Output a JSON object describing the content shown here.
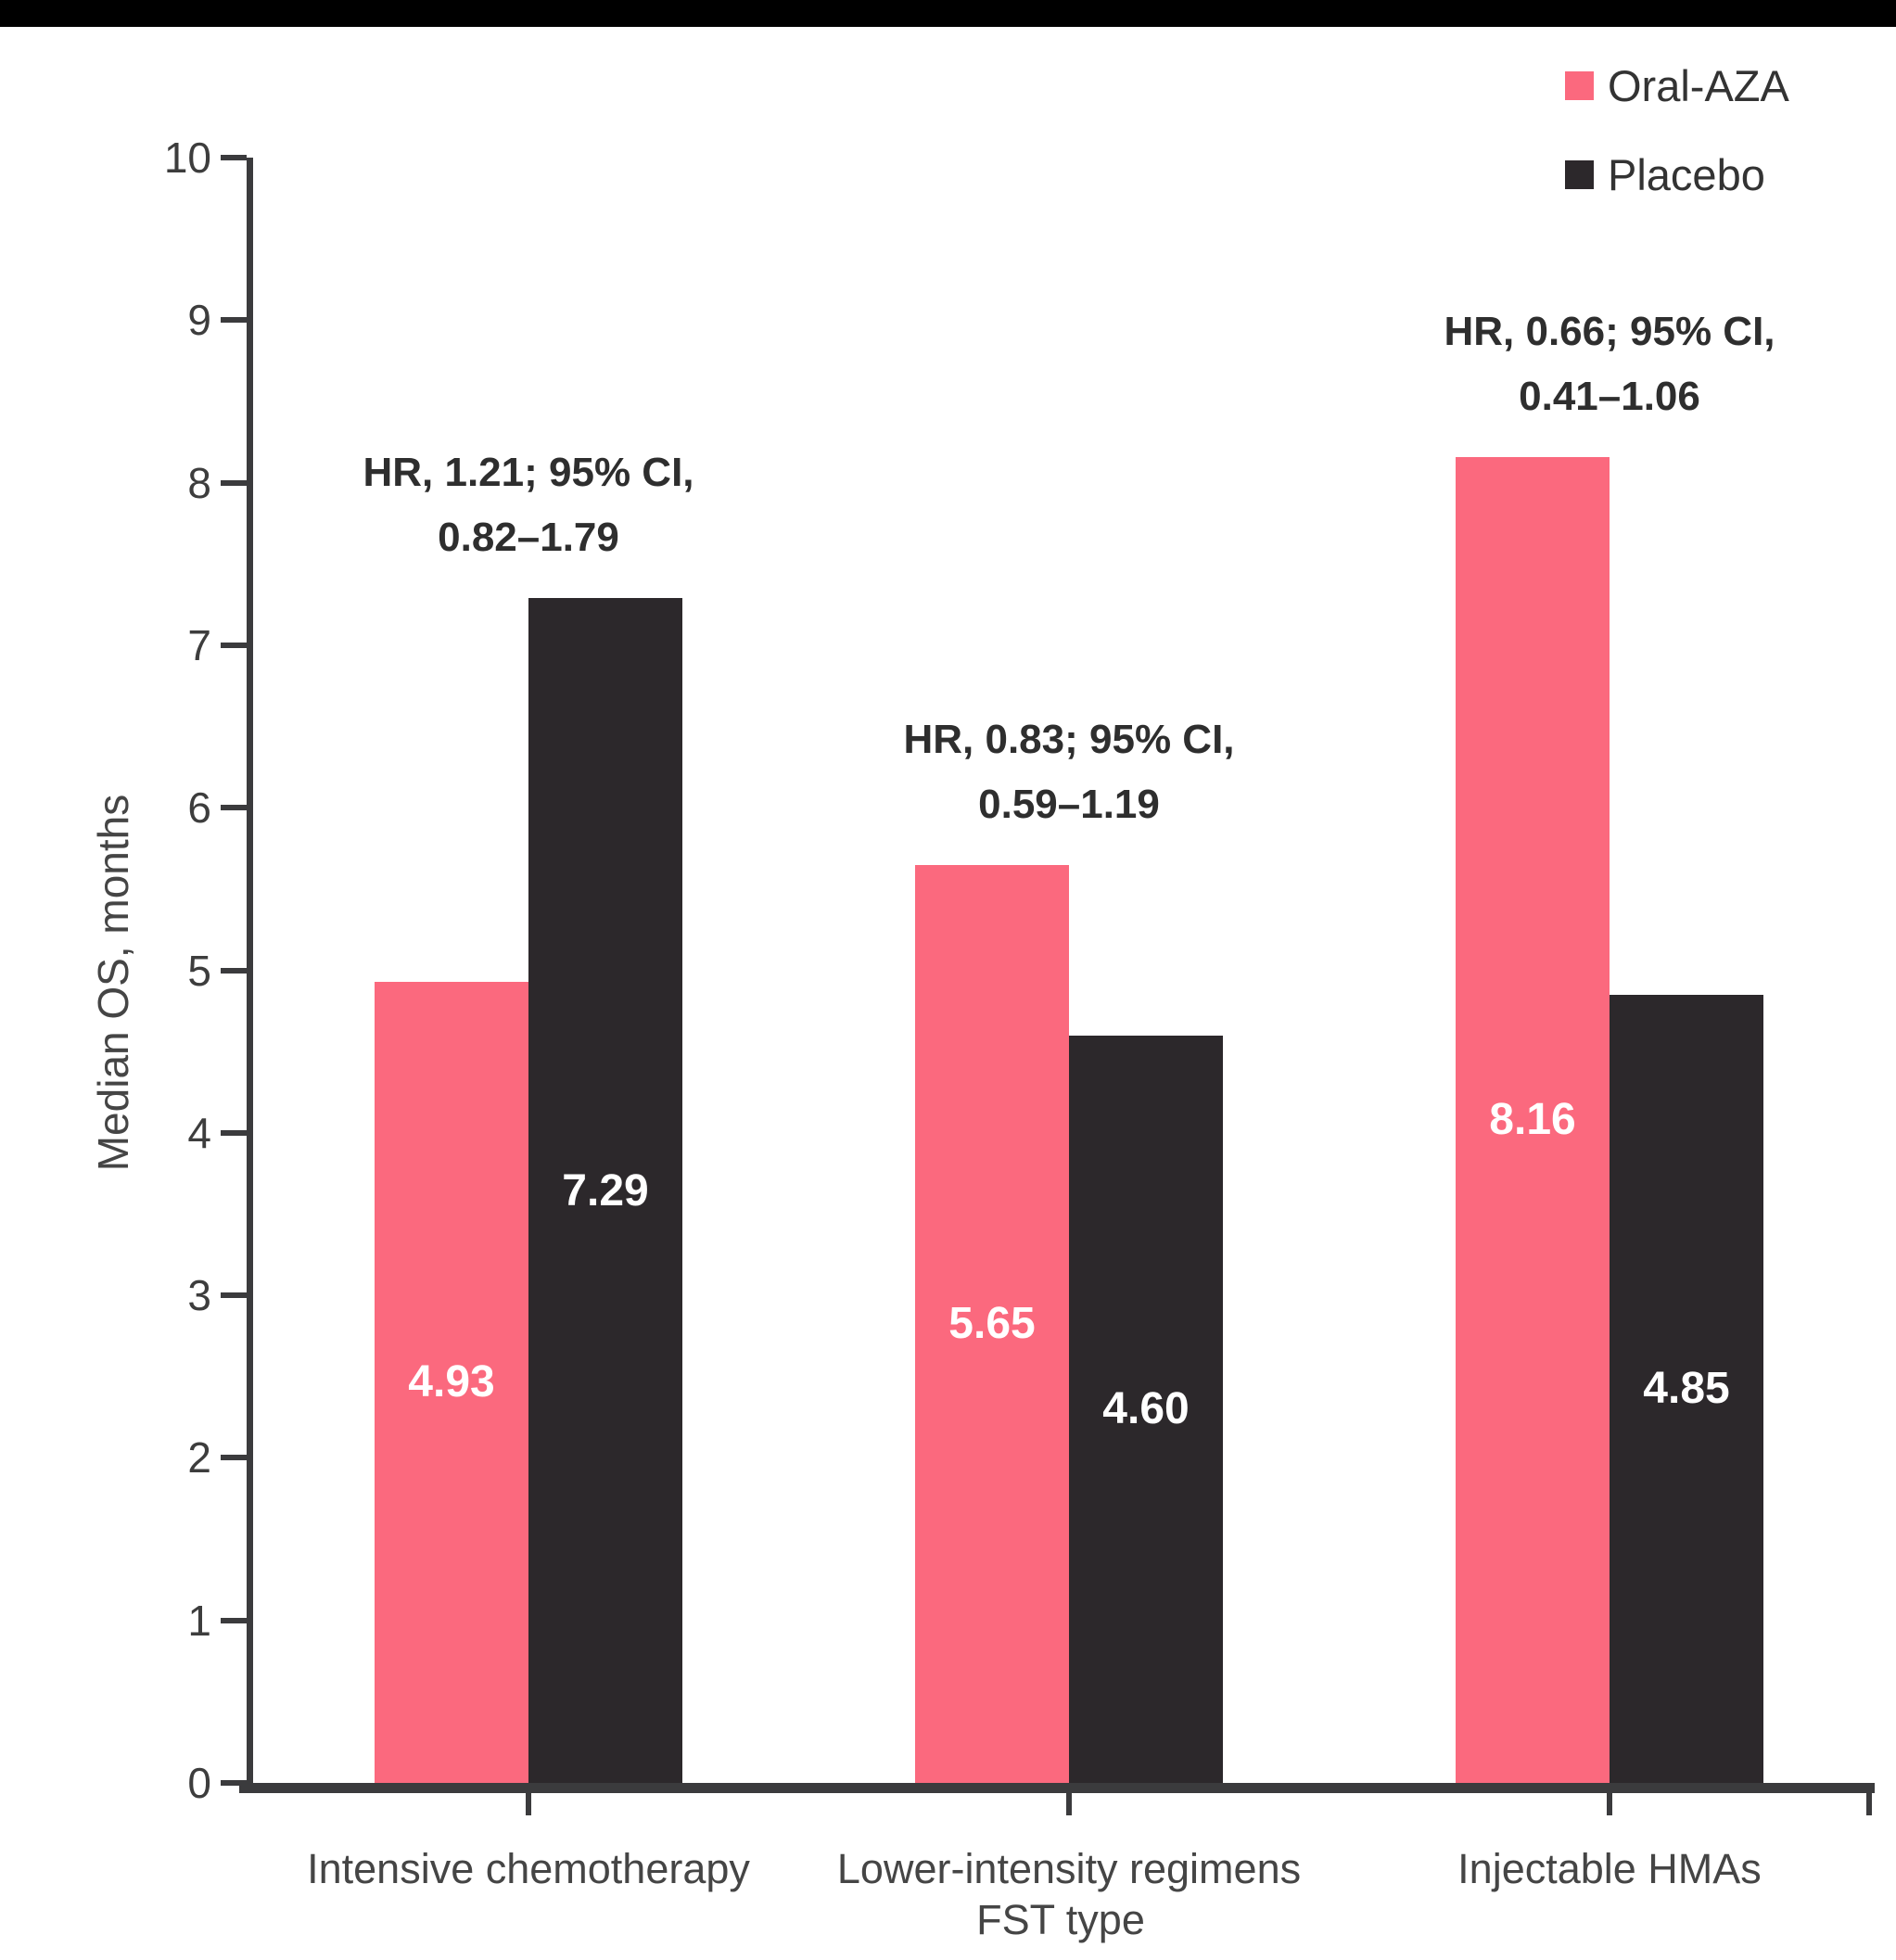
{
  "colors": {
    "top_bar": "#000000",
    "axis": "#3B3B3D",
    "oral_aza_pink": "#FB697E",
    "placebo_black": "#2C282B",
    "value_label": "#FFFFFF",
    "annotation_text": "#2E2E2E"
  },
  "chart_data": {
    "type": "bar",
    "title": "",
    "categories": [
      "Intensive chemotherapy",
      "Lower-intensity regimens",
      "Injectable HMAs"
    ],
    "series": [
      {
        "name": "Oral-AZA",
        "color": "#FB697E",
        "values": [
          4.93,
          5.65,
          8.16
        ],
        "labels": [
          "4.93",
          "5.65",
          "8.16"
        ]
      },
      {
        "name": "Placebo",
        "color": "#2C282B",
        "values": [
          7.29,
          4.6,
          4.85
        ],
        "labels": [
          "7.29",
          "4.60",
          "4.85"
        ]
      }
    ],
    "annotations": [
      {
        "line1": "HR, 1.21; 95% CI,",
        "line2": "0.82–1.79"
      },
      {
        "line1": "HR, 0.83; 95% CI,",
        "line2": "0.59–1.19"
      },
      {
        "line1": "HR, 0.66; 95% CI,",
        "line2": "0.41–1.06"
      }
    ],
    "xlabel": "FST type",
    "ylabel": "Median OS, months",
    "ylim": [
      0,
      10
    ],
    "yticks": [
      0,
      1,
      2,
      3,
      4,
      5,
      6,
      7,
      8,
      9,
      10
    ],
    "grid": false,
    "legend_position": "top-right",
    "value_labels_inside_bars": true
  }
}
